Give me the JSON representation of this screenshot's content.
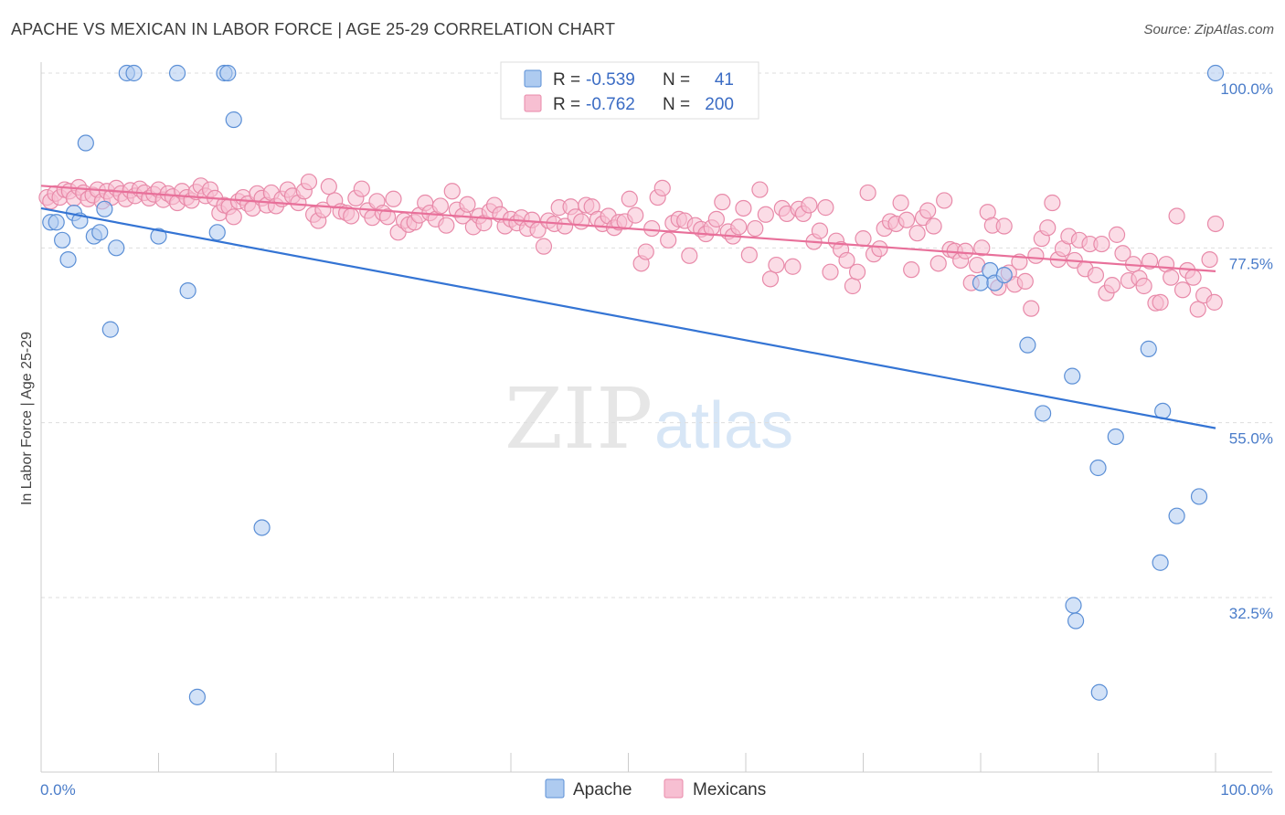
{
  "header": {
    "title": "APACHE VS MEXICAN IN LABOR FORCE | AGE 25-29 CORRELATION CHART",
    "source": "Source: ZipAtlas.com"
  },
  "watermark": {
    "zip": "ZIP",
    "atlas": "atlas"
  },
  "colors": {
    "apache_fill": "#aecbf0",
    "apache_stroke": "#5b8fd6",
    "apache_line": "#3474d4",
    "mexican_fill": "#f7bfd2",
    "mexican_stroke": "#e88aa9",
    "mexican_line": "#e8709a",
    "tick_text": "#4a7cc9",
    "grid": "#dddddd"
  },
  "legend": {
    "rows": [
      {
        "series": "Apache",
        "r_label": "R =",
        "r_value": "-0.539",
        "n_label": "N =",
        "n_value": "41"
      },
      {
        "series": "Mexicans",
        "r_label": "R =",
        "r_value": "-0.762",
        "n_label": "N =",
        "n_value": "200"
      }
    ]
  },
  "chart_data": {
    "type": "scatter",
    "title": "APACHE VS MEXICAN IN LABOR FORCE | AGE 25-29 CORRELATION CHART",
    "xlabel": "",
    "ylabel": "In Labor Force | Age 25-29",
    "xlim": [
      0,
      100
    ],
    "ylim": [
      15,
      102
    ],
    "x_tick_labels": [
      "0.0%",
      "100.0%"
    ],
    "y_ticks": [
      32.5,
      55.0,
      77.5,
      100.0
    ],
    "y_tick_labels": [
      "32.5%",
      "55.0%",
      "77.5%",
      "100.0%"
    ],
    "grid": true,
    "legend_position": "top-center",
    "series": [
      {
        "name": "Apache",
        "r": -0.539,
        "n": 41,
        "trend": {
          "x": [
            0,
            100
          ],
          "y": [
            82.6,
            54.3
          ]
        },
        "points": [
          [
            0.8,
            80.8
          ],
          [
            1.3,
            80.8
          ],
          [
            1.8,
            78.5
          ],
          [
            2.3,
            76.0
          ],
          [
            2.8,
            82.0
          ],
          [
            3.3,
            81.0
          ],
          [
            3.8,
            91.0
          ],
          [
            4.5,
            79.0
          ],
          [
            5.0,
            79.5
          ],
          [
            5.4,
            82.5
          ],
          [
            5.9,
            67.0
          ],
          [
            6.4,
            77.5
          ],
          [
            7.3,
            100.0
          ],
          [
            7.9,
            100.0
          ],
          [
            10.0,
            79.0
          ],
          [
            11.6,
            100.0
          ],
          [
            12.5,
            72.0
          ],
          [
            13.3,
            19.7
          ],
          [
            15.0,
            79.5
          ],
          [
            15.6,
            100.0
          ],
          [
            15.9,
            100.0
          ],
          [
            16.4,
            94.0
          ],
          [
            18.8,
            41.5
          ],
          [
            80.0,
            73.0
          ],
          [
            80.8,
            74.6
          ],
          [
            81.2,
            73.0
          ],
          [
            82.0,
            74.0
          ],
          [
            84.0,
            65.0
          ],
          [
            85.3,
            56.2
          ],
          [
            87.8,
            61.0
          ],
          [
            90.0,
            49.2
          ],
          [
            91.5,
            53.2
          ],
          [
            94.3,
            64.5
          ],
          [
            95.5,
            56.5
          ],
          [
            96.7,
            43.0
          ],
          [
            95.3,
            37.0
          ],
          [
            98.6,
            45.5
          ],
          [
            100.0,
            100.0
          ],
          [
            88.1,
            29.5
          ],
          [
            87.9,
            31.5
          ],
          [
            90.1,
            20.3
          ]
        ]
      },
      {
        "name": "Mexicans",
        "r": -0.762,
        "n": 200,
        "trend": {
          "x": [
            0,
            100
          ],
          "y": [
            85.5,
            74.5
          ]
        },
        "points": [
          [
            0.5,
            84.0
          ],
          [
            0.8,
            83.5
          ],
          [
            1.2,
            84.5
          ],
          [
            1.6,
            84.0
          ],
          [
            2.0,
            85.0
          ],
          [
            2.4,
            84.8
          ],
          [
            2.8,
            83.9
          ],
          [
            3.2,
            85.3
          ],
          [
            3.6,
            84.6
          ],
          [
            4.0,
            83.8
          ],
          [
            4.4,
            84.3
          ],
          [
            4.8,
            85.0
          ],
          [
            5.2,
            83.5
          ],
          [
            5.6,
            84.8
          ],
          [
            6.0,
            84.0
          ],
          [
            6.4,
            85.2
          ],
          [
            6.8,
            84.5
          ],
          [
            7.2,
            83.8
          ],
          [
            7.6,
            84.9
          ],
          [
            8.0,
            84.2
          ],
          [
            8.4,
            85.1
          ],
          [
            8.8,
            84.6
          ],
          [
            9.2,
            83.9
          ],
          [
            9.6,
            84.4
          ],
          [
            10.0,
            85.0
          ],
          [
            10.4,
            83.7
          ],
          [
            10.8,
            84.5
          ],
          [
            11.2,
            84.1
          ],
          [
            11.6,
            83.3
          ],
          [
            12.0,
            84.8
          ],
          [
            12.4,
            84.0
          ],
          [
            12.8,
            83.6
          ],
          [
            13.2,
            84.7
          ],
          [
            13.6,
            85.5
          ],
          [
            14.0,
            84.2
          ],
          [
            14.4,
            85.0
          ],
          [
            14.8,
            83.9
          ],
          [
            15.2,
            82.0
          ],
          [
            15.6,
            83.0
          ],
          [
            16.0,
            82.8
          ],
          [
            16.4,
            81.5
          ],
          [
            16.8,
            83.5
          ],
          [
            17.2,
            84.0
          ],
          [
            17.6,
            83.2
          ],
          [
            18.0,
            82.6
          ],
          [
            18.4,
            84.5
          ],
          [
            18.8,
            83.9
          ],
          [
            19.2,
            83.0
          ],
          [
            19.6,
            84.6
          ],
          [
            20.0,
            82.9
          ],
          [
            20.5,
            83.8
          ],
          [
            21.0,
            85.0
          ],
          [
            21.4,
            84.2
          ],
          [
            21.9,
            83.3
          ],
          [
            22.4,
            84.8
          ],
          [
            22.8,
            86.0
          ],
          [
            23.2,
            81.8
          ],
          [
            23.6,
            81.0
          ],
          [
            24.0,
            82.4
          ],
          [
            24.5,
            85.4
          ],
          [
            25.0,
            83.6
          ],
          [
            25.5,
            82.2
          ],
          [
            26.0,
            82.0
          ],
          [
            26.4,
            81.6
          ],
          [
            26.8,
            83.9
          ],
          [
            27.3,
            85.1
          ],
          [
            27.8,
            82.3
          ],
          [
            28.2,
            81.4
          ],
          [
            28.6,
            83.5
          ],
          [
            29.1,
            82.0
          ],
          [
            29.5,
            81.5
          ],
          [
            30.0,
            83.8
          ],
          [
            30.4,
            79.5
          ],
          [
            30.9,
            81.0
          ],
          [
            31.3,
            80.5
          ],
          [
            31.8,
            80.8
          ],
          [
            32.2,
            81.7
          ],
          [
            32.7,
            83.3
          ],
          [
            33.1,
            82.0
          ],
          [
            33.6,
            81.2
          ],
          [
            34.0,
            82.9
          ],
          [
            34.5,
            80.4
          ],
          [
            35.0,
            84.8
          ],
          [
            35.4,
            82.4
          ],
          [
            35.9,
            81.6
          ],
          [
            36.3,
            83.1
          ],
          [
            36.8,
            80.2
          ],
          [
            37.3,
            81.6
          ],
          [
            37.7,
            80.7
          ],
          [
            38.2,
            82.2
          ],
          [
            38.6,
            83.0
          ],
          [
            39.1,
            81.8
          ],
          [
            39.5,
            80.3
          ],
          [
            40.0,
            81.2
          ],
          [
            40.5,
            80.7
          ],
          [
            40.9,
            81.4
          ],
          [
            41.4,
            80.0
          ],
          [
            41.8,
            81.1
          ],
          [
            42.3,
            79.8
          ],
          [
            42.8,
            77.7
          ],
          [
            43.2,
            81.0
          ],
          [
            43.7,
            80.6
          ],
          [
            44.1,
            82.7
          ],
          [
            44.6,
            80.3
          ],
          [
            45.1,
            82.8
          ],
          [
            45.5,
            81.5
          ],
          [
            46.0,
            80.9
          ],
          [
            46.4,
            83.0
          ],
          [
            46.9,
            82.8
          ],
          [
            47.4,
            81.2
          ],
          [
            47.8,
            80.6
          ],
          [
            48.3,
            81.6
          ],
          [
            48.8,
            80.1
          ],
          [
            49.2,
            80.8
          ],
          [
            49.7,
            80.9
          ],
          [
            50.1,
            83.8
          ],
          [
            50.6,
            81.7
          ],
          [
            51.1,
            75.5
          ],
          [
            51.5,
            77.0
          ],
          [
            52.0,
            80.0
          ],
          [
            52.5,
            84.0
          ],
          [
            52.9,
            85.2
          ],
          [
            53.4,
            78.5
          ],
          [
            53.8,
            80.7
          ],
          [
            54.3,
            81.2
          ],
          [
            54.8,
            81.0
          ],
          [
            55.2,
            76.5
          ],
          [
            55.7,
            80.4
          ],
          [
            56.2,
            79.9
          ],
          [
            56.6,
            79.3
          ],
          [
            57.1,
            80.1
          ],
          [
            57.5,
            81.2
          ],
          [
            58.0,
            83.4
          ],
          [
            58.5,
            79.6
          ],
          [
            58.9,
            79.0
          ],
          [
            59.4,
            80.2
          ],
          [
            59.8,
            82.6
          ],
          [
            60.3,
            76.6
          ],
          [
            60.8,
            80.0
          ],
          [
            61.2,
            85.0
          ],
          [
            61.7,
            81.8
          ],
          [
            62.1,
            73.5
          ],
          [
            62.6,
            75.3
          ],
          [
            63.1,
            82.6
          ],
          [
            63.5,
            81.9
          ],
          [
            64.0,
            75.1
          ],
          [
            64.5,
            82.5
          ],
          [
            64.9,
            81.9
          ],
          [
            65.4,
            83.0
          ],
          [
            65.8,
            78.3
          ],
          [
            66.3,
            79.7
          ],
          [
            66.8,
            82.7
          ],
          [
            67.2,
            74.4
          ],
          [
            67.7,
            78.4
          ],
          [
            68.1,
            77.3
          ],
          [
            68.6,
            75.9
          ],
          [
            69.1,
            72.6
          ],
          [
            69.5,
            74.4
          ],
          [
            70.0,
            78.7
          ],
          [
            70.4,
            84.6
          ],
          [
            70.9,
            76.7
          ],
          [
            71.4,
            77.4
          ],
          [
            71.8,
            80.0
          ],
          [
            72.3,
            80.9
          ],
          [
            72.8,
            80.6
          ],
          [
            73.2,
            83.3
          ],
          [
            73.7,
            81.1
          ],
          [
            74.1,
            74.7
          ],
          [
            74.6,
            79.4
          ],
          [
            75.1,
            81.4
          ],
          [
            75.5,
            82.3
          ],
          [
            76.0,
            80.3
          ],
          [
            76.4,
            75.5
          ],
          [
            76.9,
            83.6
          ],
          [
            77.4,
            77.3
          ],
          [
            77.8,
            77.1
          ],
          [
            78.3,
            75.9
          ],
          [
            78.7,
            77.1
          ],
          [
            79.2,
            73.0
          ],
          [
            79.7,
            75.3
          ],
          [
            80.1,
            77.5
          ],
          [
            80.6,
            82.1
          ],
          [
            81.0,
            80.4
          ],
          [
            81.5,
            72.4
          ],
          [
            82.0,
            80.3
          ],
          [
            82.4,
            74.3
          ],
          [
            82.9,
            72.8
          ],
          [
            83.3,
            75.7
          ],
          [
            83.8,
            73.2
          ],
          [
            84.3,
            69.7
          ],
          [
            84.7,
            76.5
          ],
          [
            85.2,
            78.7
          ],
          [
            85.7,
            80.1
          ],
          [
            86.1,
            83.3
          ],
          [
            86.6,
            76.0
          ],
          [
            87.0,
            77.4
          ],
          [
            87.5,
            79.0
          ],
          [
            88.0,
            75.9
          ],
          [
            88.4,
            78.5
          ],
          [
            88.9,
            74.8
          ],
          [
            89.3,
            78.0
          ],
          [
            89.8,
            74.0
          ],
          [
            90.3,
            78.0
          ],
          [
            90.7,
            71.7
          ],
          [
            91.2,
            72.7
          ],
          [
            91.6,
            79.2
          ],
          [
            92.1,
            76.8
          ],
          [
            92.6,
            73.3
          ],
          [
            93.0,
            75.4
          ],
          [
            93.5,
            73.6
          ],
          [
            93.9,
            72.6
          ],
          [
            94.4,
            75.8
          ],
          [
            94.9,
            70.4
          ],
          [
            95.3,
            70.5
          ],
          [
            95.8,
            75.4
          ],
          [
            96.2,
            73.7
          ],
          [
            96.7,
            81.6
          ],
          [
            97.2,
            72.1
          ],
          [
            97.6,
            74.6
          ],
          [
            98.1,
            73.7
          ],
          [
            98.5,
            69.6
          ],
          [
            99.0,
            71.4
          ],
          [
            99.5,
            76.0
          ],
          [
            99.9,
            70.5
          ],
          [
            100.0,
            80.6
          ]
        ]
      }
    ]
  }
}
